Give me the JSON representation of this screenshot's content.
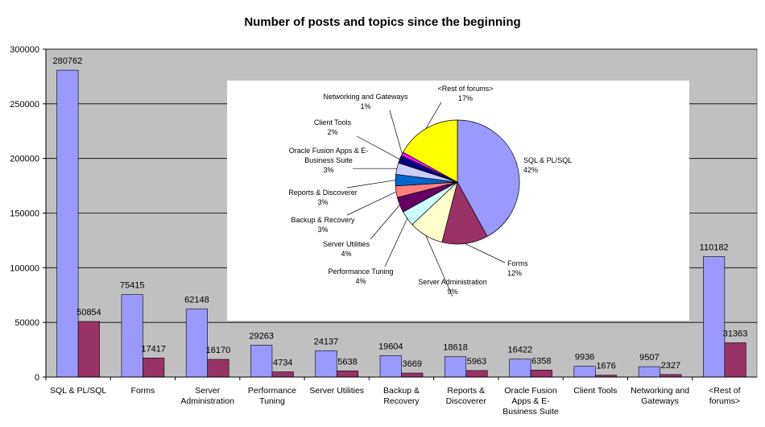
{
  "chart_data": [
    {
      "type": "bar",
      "title": "Number of posts and topics since the beginning",
      "xlabel": "",
      "ylabel": "",
      "ylim": [
        0,
        300000
      ],
      "yticks": [
        "0",
        "50000",
        "100000",
        "150000",
        "200000",
        "250000",
        "300000"
      ],
      "grid": true,
      "categories": [
        [
          "SQL & PL/SQL"
        ],
        [
          "Forms"
        ],
        [
          "Server",
          "Administration"
        ],
        [
          "Performance",
          "Tuning"
        ],
        [
          "Server Utilities"
        ],
        [
          "Backup &",
          "Recovery"
        ],
        [
          "Reports &",
          "Discoverer"
        ],
        [
          "Oracle Fusion",
          "Apps & E-",
          "Business Suite"
        ],
        [
          "Client Tools"
        ],
        [
          "Networking and",
          "Gateways"
        ],
        [
          "<Rest of",
          "forums>"
        ]
      ],
      "series": [
        {
          "values": [
            280762,
            75415,
            62148,
            29263,
            24137,
            19604,
            18618,
            16422,
            9936,
            9507,
            110182
          ],
          "labels": [
            "280762",
            "75415",
            "62148",
            "29263",
            "24137",
            "19604",
            "18618",
            "16422",
            "9936",
            "9507",
            "110182"
          ],
          "color": "#9999ff"
        },
        {
          "values": [
            50854,
            17417,
            16170,
            4734,
            5638,
            3669,
            5963,
            6358,
            1676,
            2327,
            31363
          ],
          "labels": [
            "50854",
            "17417",
            "16170",
            "4734",
            "5638",
            "3669",
            "5963",
            "6358",
            "1676",
            "2327",
            "31363"
          ],
          "color": "#993366"
        }
      ]
    },
    {
      "type": "pie",
      "slices": [
        {
          "lines": [
            "SQL & PL/SQL",
            "42%"
          ],
          "value": 42,
          "color": "#9999ff"
        },
        {
          "lines": [
            "Forms",
            "12%"
          ],
          "value": 12,
          "color": "#993366"
        },
        {
          "lines": [
            "Server Administration",
            "9%"
          ],
          "value": 9,
          "color": "#ffffcc"
        },
        {
          "lines": [
            "Performance Tuning",
            "4%"
          ],
          "value": 4,
          "color": "#ccffff"
        },
        {
          "lines": [
            "Server Utilities",
            "4%"
          ],
          "value": 4,
          "color": "#660066"
        },
        {
          "lines": [
            "Backup & Recovery",
            "3%"
          ],
          "value": 3,
          "color": "#ff8080"
        },
        {
          "lines": [
            "Reports & Discoverer",
            "3%"
          ],
          "value": 3,
          "color": "#0066cc"
        },
        {
          "lines": [
            "Oracle Fusion Apps & E-",
            "Business Suite",
            "3%"
          ],
          "value": 3,
          "color": "#ccccff"
        },
        {
          "lines": [
            "Client Tools",
            "2%"
          ],
          "value": 2,
          "color": "#000080"
        },
        {
          "lines": [
            "Networking and Gateways",
            "1%"
          ],
          "value": 1,
          "color": "#ff00ff"
        },
        {
          "lines": [
            "<Rest of forums>",
            "17%"
          ],
          "value": 17,
          "color": "#ffff00"
        }
      ]
    }
  ],
  "colors": {
    "plot_background": "#c0c0c0",
    "gridline": "#000000"
  }
}
